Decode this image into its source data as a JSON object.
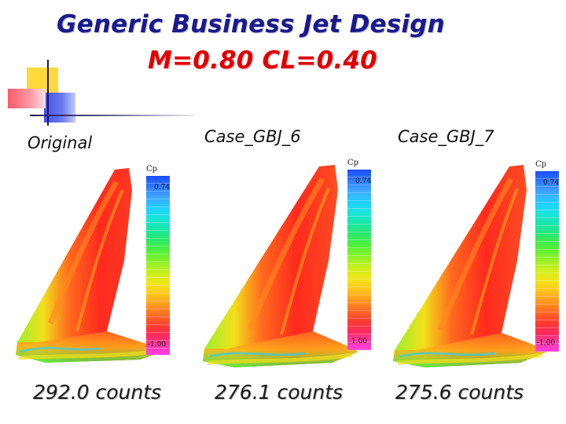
{
  "title": {
    "line1": "Generic Business Jet Design",
    "line2": "M=0.80  CL=0.40"
  },
  "panels": [
    {
      "label": "Original",
      "counts": "292.0 counts",
      "colorbar": {
        "title": "Cp",
        "max": "0.74",
        "min": "-1.00"
      }
    },
    {
      "label": "Case_GBJ_6",
      "counts": "276.1 counts",
      "colorbar": {
        "title": "Cp",
        "max": "0.74",
        "min": "-1.00"
      }
    },
    {
      "label": "Case_GBJ_7",
      "counts": "275.6 counts",
      "colorbar": {
        "title": "Cp",
        "max": "0.74",
        "min": "-1.00"
      }
    }
  ],
  "colors": {
    "title_blue": "#1a1a8c",
    "title_red": "#e00000",
    "wing_red": "#ff2a1e",
    "wing_orange": "#ff7a1e",
    "wing_yellow": "#f2e01a",
    "wing_green": "#3fe84a"
  }
}
